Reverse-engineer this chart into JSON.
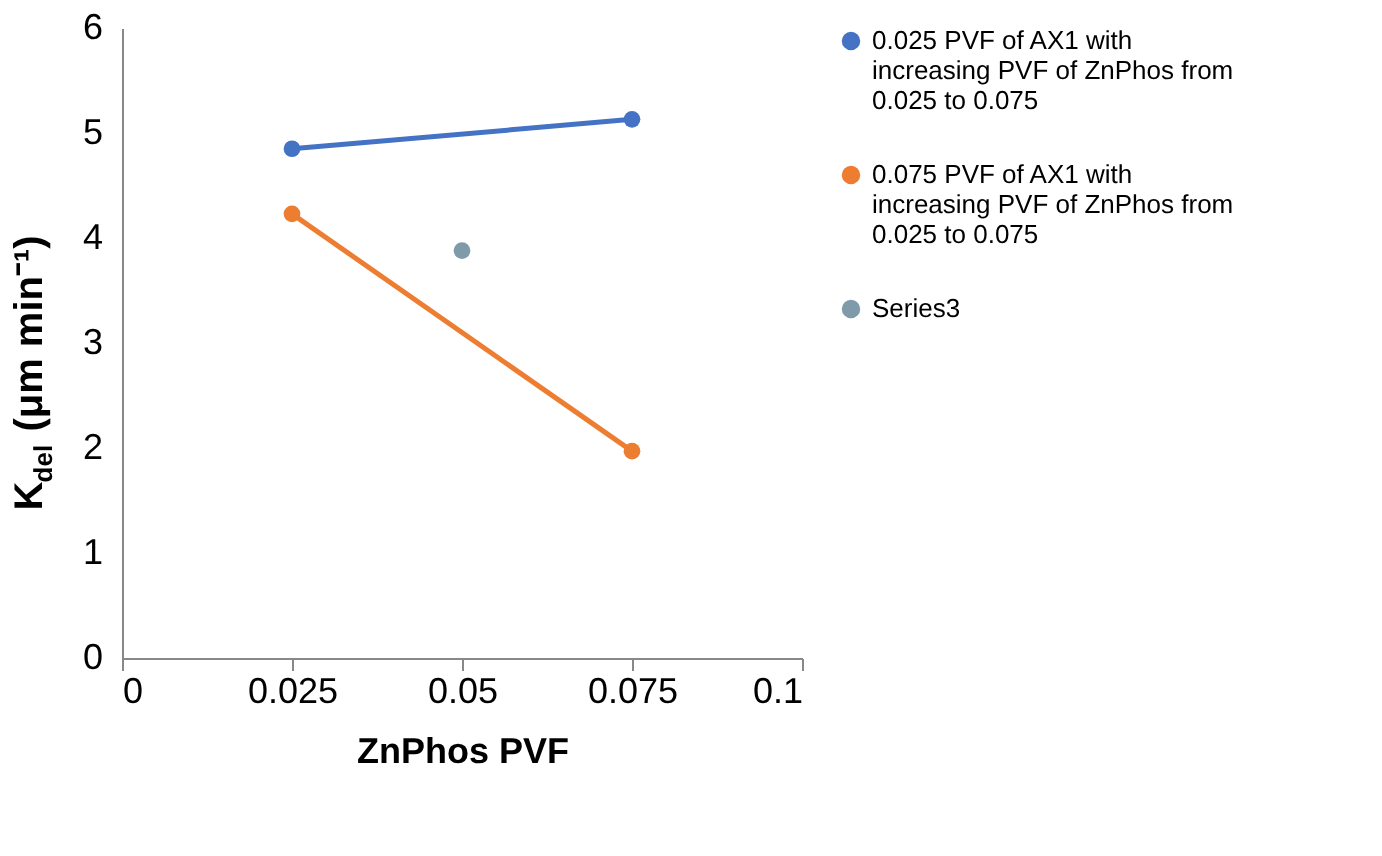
{
  "chart_data": {
    "type": "line",
    "xlabel": "ZnPhos PVF",
    "ylabel": "K$_{del}$ (μm min⁻¹)",
    "xlim": [
      0,
      0.1
    ],
    "xticks": [
      0,
      0.025,
      0.05,
      0.075,
      0.1
    ],
    "ylim": [
      0,
      6
    ],
    "yticks": [
      0,
      1,
      2,
      3,
      4,
      5,
      6
    ],
    "grid": false,
    "legend": "right",
    "marker": "circle",
    "series": [
      {
        "name": "0.025 PVF of AX1 with increasing PVF of ZnPhos from 0.025 to 0.075",
        "color": "#4472c4",
        "x": [
          0.025,
          0.075
        ],
        "values": [
          4.85,
          5.13
        ]
      },
      {
        "name": "0.075 PVF of AX1 with increasing PVF of ZnPhos from 0.025 to 0.075",
        "color": "#ed7d31",
        "x": [
          0.025,
          0.075
        ],
        "values": [
          4.23,
          1.97
        ]
      },
      {
        "name": "Series3",
        "type": "scatter",
        "color": "#7f9baa",
        "x": [
          0.05
        ],
        "values": [
          3.88
        ]
      }
    ]
  }
}
